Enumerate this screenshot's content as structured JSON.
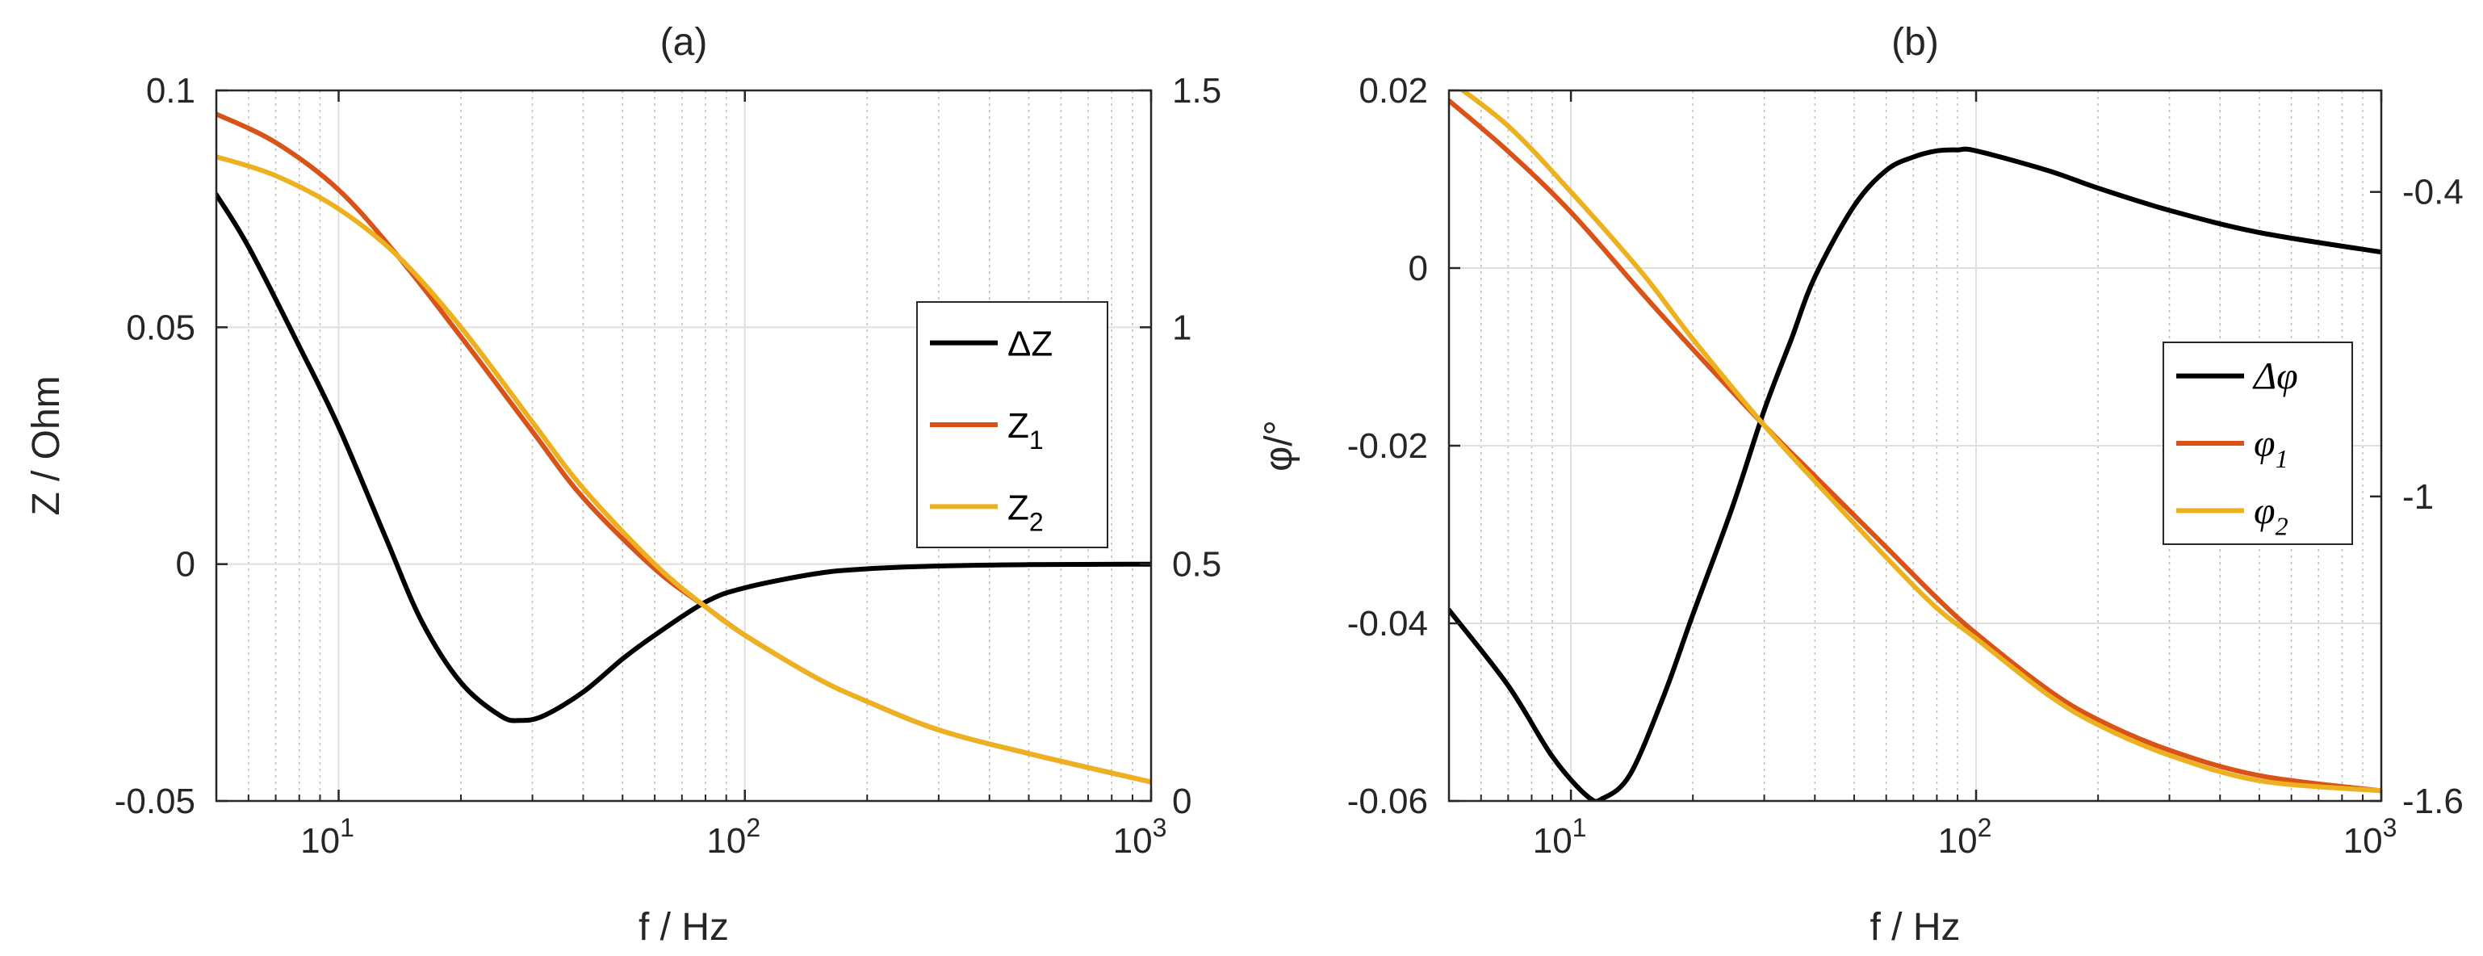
{
  "colors": {
    "dZ": "#000000",
    "Z1": "#d95319",
    "Z2": "#edb120",
    "axis": "#262626",
    "grid": "#dfdfdf",
    "minor_grid": "#bdbdbd"
  },
  "chart_data": [
    {
      "type": "line",
      "panel_title": "(a)",
      "xlabel": "f / Hz",
      "ylabel_left": "Z / Ohm",
      "ylabel_right": "",
      "xscale": "log",
      "xlim": [
        5,
        1000
      ],
      "xticks": [
        10,
        100,
        1000
      ],
      "xtick_labels": [
        {
          "base": "10",
          "exp": "1"
        },
        {
          "base": "10",
          "exp": "2"
        },
        {
          "base": "10",
          "exp": "3"
        }
      ],
      "ylim_left": [
        -0.05,
        0.1
      ],
      "yticks_left": [
        "-0.05",
        "0",
        "0.05",
        "0.1"
      ],
      "ylim_right": [
        0,
        1.5
      ],
      "yticks_right": [
        "0",
        "0.5",
        "1",
        "1.5"
      ],
      "grid": true,
      "legend_placement": "right",
      "series": [
        {
          "name": "ΔZ",
          "legend_main": "ΔZ",
          "legend_sub": "",
          "axis": "left",
          "color": "#000000",
          "x": [
            5,
            6,
            8,
            10,
            13,
            16,
            20,
            25,
            28,
            32,
            40,
            50,
            60,
            80,
            100,
            150,
            200,
            300,
            500,
            1000
          ],
          "y": [
            0.078,
            0.067,
            0.046,
            0.029,
            0.006,
            -0.012,
            -0.025,
            -0.032,
            -0.033,
            -0.032,
            -0.027,
            -0.02,
            -0.015,
            -0.008,
            -0.005,
            -0.002,
            -0.001,
            -0.0004,
            -0.0001,
            0.0
          ]
        },
        {
          "name": "Z1",
          "legend_main": "Z",
          "legend_sub": "1",
          "axis": "right",
          "color": "#d95319",
          "x": [
            5,
            7,
            10,
            14,
            20,
            30,
            40,
            60,
            80,
            100,
            150,
            200,
            300,
            500,
            1000
          ],
          "y": [
            1.45,
            1.39,
            1.29,
            1.15,
            0.98,
            0.78,
            0.64,
            0.49,
            0.41,
            0.35,
            0.26,
            0.21,
            0.15,
            0.1,
            0.04
          ]
        },
        {
          "name": "Z2",
          "legend_main": "Z",
          "legend_sub": "2",
          "axis": "right",
          "color": "#edb120",
          "x": [
            5,
            7,
            10,
            14,
            20,
            30,
            40,
            60,
            80,
            100,
            150,
            200,
            300,
            500,
            1000
          ],
          "y": [
            1.36,
            1.32,
            1.25,
            1.15,
            1.0,
            0.8,
            0.66,
            0.5,
            0.41,
            0.35,
            0.26,
            0.21,
            0.15,
            0.1,
            0.04
          ]
        }
      ]
    },
    {
      "type": "line",
      "panel_title": "(b)",
      "xlabel": "f / Hz",
      "ylabel_left": "φ/°",
      "ylabel_right": "",
      "xscale": "log",
      "xlim": [
        5,
        1000
      ],
      "xticks": [
        10,
        100,
        1000
      ],
      "xtick_labels": [
        {
          "base": "10",
          "exp": "1"
        },
        {
          "base": "10",
          "exp": "2"
        },
        {
          "base": "10",
          "exp": "3"
        }
      ],
      "ylim_left": [
        -0.06,
        0.02
      ],
      "yticks_left": [
        "-0.06",
        "-0.04",
        "-0.02",
        "0",
        "0.02"
      ],
      "ylim_right": [
        -1.6,
        -0.2
      ],
      "yticks_right": [
        "-1.6",
        "-1",
        "-0.4"
      ],
      "grid": true,
      "legend_placement": "right",
      "series": [
        {
          "name": "Δφ",
          "legend_main": "Δφ",
          "legend_sub": "",
          "axis": "left",
          "color": "#000000",
          "x": [
            5,
            7,
            9,
            11,
            12,
            14,
            17,
            20,
            25,
            30,
            35,
            40,
            50,
            60,
            70,
            80,
            90,
            100,
            150,
            200,
            300,
            500,
            1000
          ],
          "y": [
            -0.0385,
            -0.047,
            -0.055,
            -0.0595,
            -0.0597,
            -0.057,
            -0.048,
            -0.039,
            -0.027,
            -0.016,
            -0.008,
            -0.001,
            0.007,
            0.011,
            0.0125,
            0.0132,
            0.0133,
            0.0132,
            0.011,
            0.009,
            0.0065,
            0.004,
            0.0018
          ]
        },
        {
          "name": "φ1",
          "legend_main": "φ",
          "legend_sub": "1",
          "axis": "right",
          "color": "#d95319",
          "x": [
            5,
            7,
            10,
            15,
            20,
            30,
            40,
            60,
            80,
            100,
            150,
            200,
            300,
            500,
            1000
          ],
          "y": [
            -0.22,
            -0.32,
            -0.44,
            -0.6,
            -0.71,
            -0.86,
            -0.96,
            -1.1,
            -1.2,
            -1.27,
            -1.38,
            -1.44,
            -1.5,
            -1.55,
            -1.58
          ]
        },
        {
          "name": "φ2",
          "legend_main": "φ",
          "legend_sub": "2",
          "axis": "right",
          "color": "#edb120",
          "x": [
            5,
            7,
            10,
            15,
            20,
            30,
            40,
            60,
            80,
            100,
            150,
            200,
            300,
            500,
            1000
          ],
          "y": [
            -0.18,
            -0.27,
            -0.4,
            -0.56,
            -0.69,
            -0.86,
            -0.97,
            -1.12,
            -1.22,
            -1.28,
            -1.39,
            -1.45,
            -1.51,
            -1.56,
            -1.58
          ]
        }
      ]
    }
  ]
}
